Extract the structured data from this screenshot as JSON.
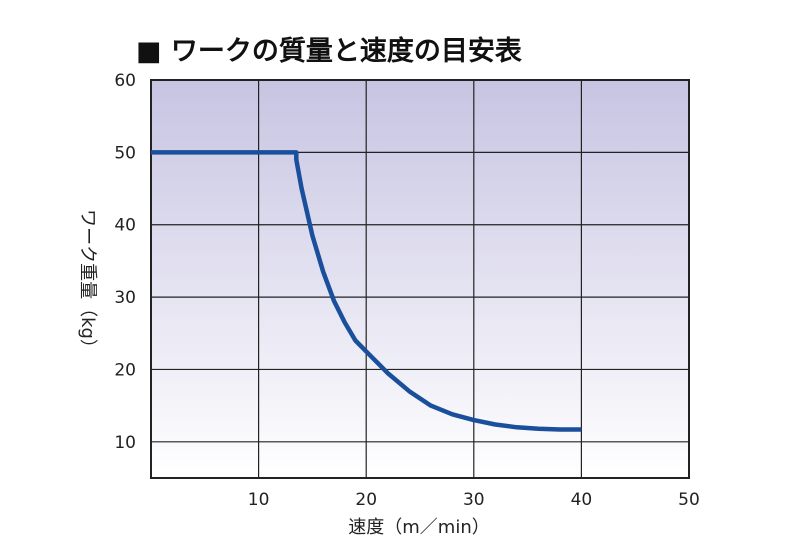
{
  "chart_data": {
    "type": "line",
    "title": "■ ワークの質量と速度の目安表",
    "xlabel": "速度（m／min）",
    "ylabel": "ワーク重量（kg）",
    "xlim": [
      0,
      50
    ],
    "ylim": [
      5,
      60
    ],
    "x_ticks": [
      "10",
      "20",
      "30",
      "40",
      "50"
    ],
    "y_ticks": [
      "10",
      "20",
      "30",
      "40",
      "50",
      "60"
    ],
    "grid": true,
    "series": [
      {
        "color": "#1a4f9c",
        "points": [
          [
            0,
            50
          ],
          [
            13.5,
            50
          ],
          [
            13.5,
            49
          ],
          [
            14,
            45
          ],
          [
            15,
            38.5
          ],
          [
            16,
            33.5
          ],
          [
            17,
            29.5
          ],
          [
            18,
            26.5
          ],
          [
            19,
            24
          ],
          [
            20,
            22.5
          ],
          [
            22,
            19.5
          ],
          [
            24,
            17
          ],
          [
            26,
            15
          ],
          [
            28,
            13.8
          ],
          [
            30,
            13
          ],
          [
            32,
            12.4
          ],
          [
            34,
            12
          ],
          [
            36,
            11.8
          ],
          [
            38,
            11.7
          ],
          [
            40,
            11.7
          ]
        ]
      }
    ],
    "background_gradient": [
      "#c7c4e2",
      "#ffffff"
    ],
    "grid_color": "#222222"
  }
}
